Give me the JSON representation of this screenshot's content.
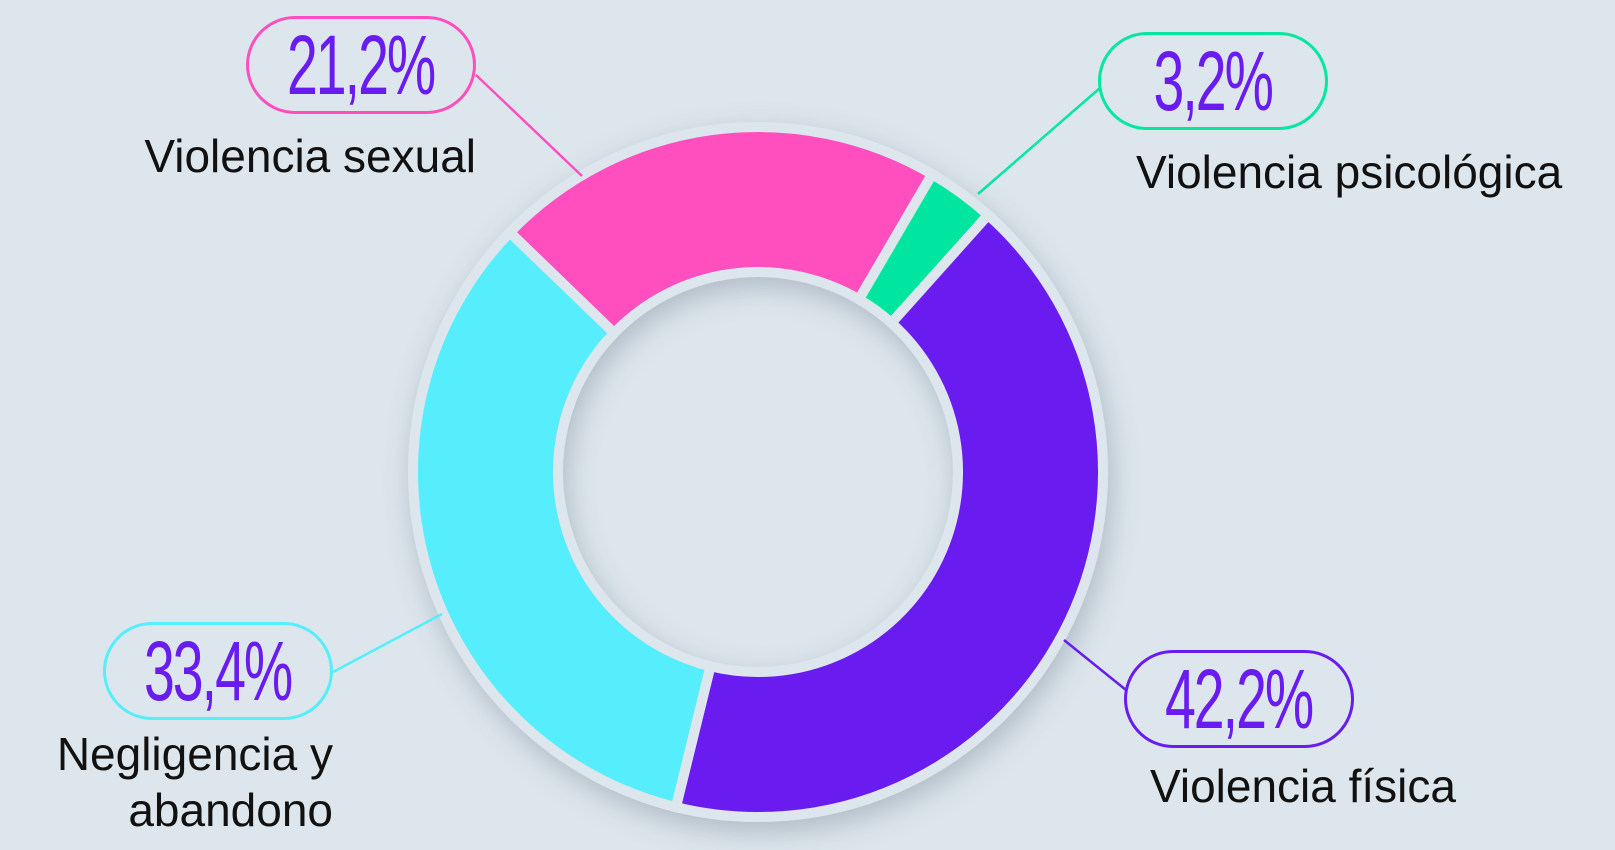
{
  "chart_data": {
    "type": "donut",
    "categories": [
      "Violencia sexual",
      "Violencia psicológica",
      "Violencia física",
      "Negligencia y abandono"
    ],
    "values": [
      21.2,
      3.2,
      42.2,
      33.4
    ],
    "value_labels": [
      "21,2%",
      "3,2%",
      "42,2%",
      "33,4%"
    ],
    "colors": [
      "#ff4fbf",
      "#05e6a0",
      "#6a1cf0",
      "#56eefc"
    ]
  }
}
